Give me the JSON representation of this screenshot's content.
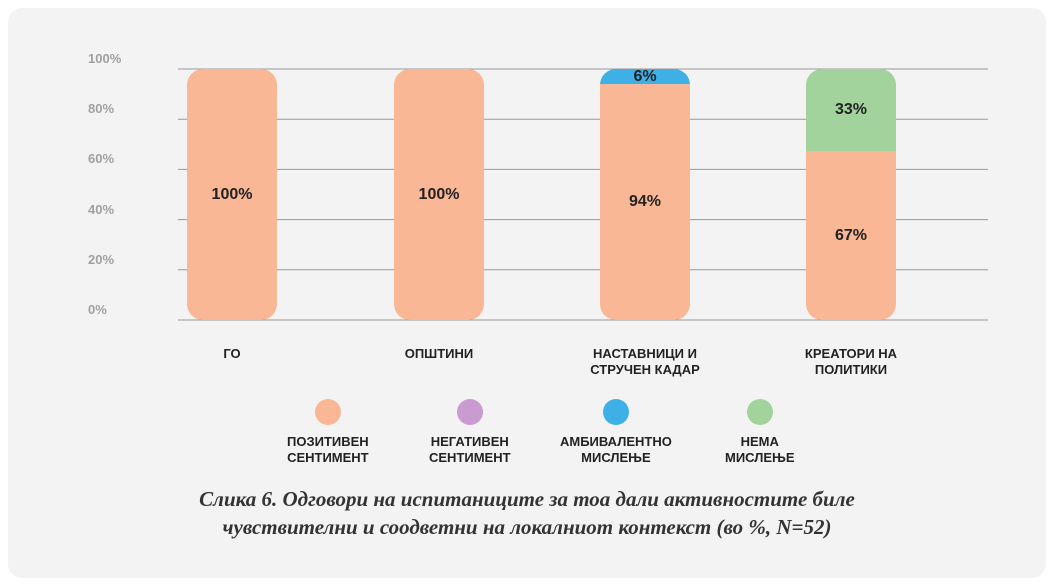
{
  "chart_data": {
    "type": "bar",
    "stacked": true,
    "categories": [
      "ГО",
      "ОПШТИНИ",
      "НАСТАВНИЦИ И СТРУЧЕН КАДАР",
      "КРЕАТОРИ НА ПОЛИТИКИ"
    ],
    "series": [
      {
        "name": "ПОЗИТИВЕН СЕНТИМЕНТ",
        "color": "#f9b795",
        "values": [
          100,
          100,
          94,
          67
        ],
        "value_labels": [
          "100%",
          "100%",
          "94%",
          "67%"
        ]
      },
      {
        "name": "НЕГАТИВЕН СЕНТИМЕНТ",
        "color": "#c99bd0",
        "values": [
          0,
          0,
          0,
          0
        ],
        "value_labels": [
          null,
          null,
          null,
          null
        ]
      },
      {
        "name": "АМБИВАЛЕНТНО МИСЛЕЊЕ",
        "color": "#3fb0e6",
        "values": [
          0,
          0,
          6,
          0
        ],
        "value_labels": [
          null,
          null,
          "6%",
          null
        ]
      },
      {
        "name": "НЕМА МИСЛЕЊЕ",
        "color": "#a3d39c",
        "values": [
          0,
          0,
          0,
          33
        ],
        "value_labels": [
          null,
          null,
          null,
          "33%"
        ]
      }
    ],
    "ylim": [
      0,
      100
    ],
    "yticks": [
      {
        "value": 0,
        "label": "0%"
      },
      {
        "value": 20,
        "label": "20%"
      },
      {
        "value": 40,
        "label": "40%"
      },
      {
        "value": 60,
        "label": "60%"
      },
      {
        "value": 80,
        "label": "80%"
      },
      {
        "value": 100,
        "label": "100%"
      }
    ],
    "grid": true,
    "caption": "Слика 6. Одговори на испитаниците за тоа дали активностите биле чувствителни и соодветни на локалниот контекст (во %, N=52)"
  }
}
